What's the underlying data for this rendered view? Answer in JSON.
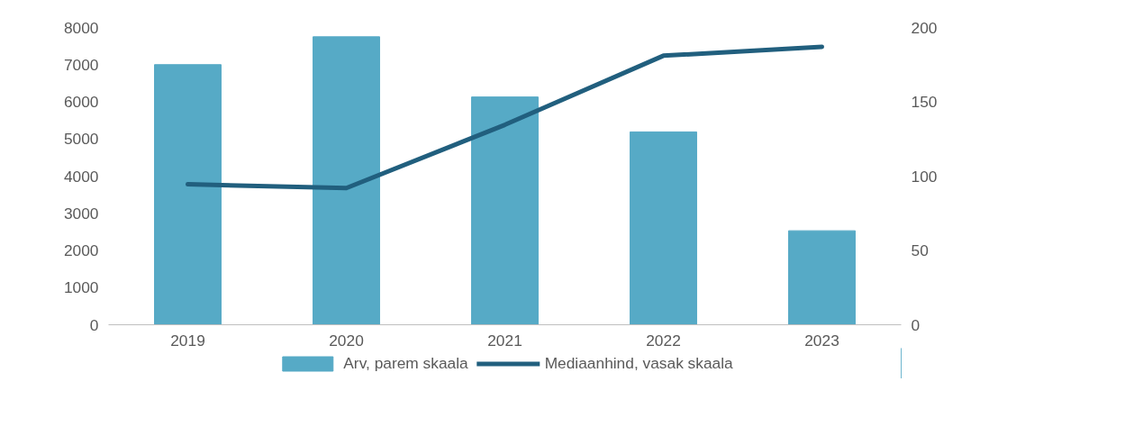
{
  "chart_data": {
    "type": "bar",
    "categories": [
      "2019",
      "2020",
      "2021",
      "2022",
      "2023"
    ],
    "series": [
      {
        "name": "Arv, parem skaala",
        "color": "#56aac6",
        "values": [
          7000,
          7750,
          6130,
          5190,
          2530
        ]
      },
      {
        "name": "Mediaanhind, vasak skaala",
        "color": "#215f7e",
        "type": "line",
        "axis": "y2",
        "values": [
          94.5,
          92,
          134.5,
          181,
          187
        ]
      }
    ],
    "ylim": [
      0,
      8000
    ],
    "yticks": [
      0,
      1000,
      2000,
      3000,
      4000,
      5000,
      6000,
      7000,
      8000
    ],
    "y2lim": [
      0,
      200
    ],
    "y2ticks": [
      0,
      50,
      100,
      150,
      200
    ],
    "grid": false,
    "legend": "bottom",
    "line_style": "solid",
    "marker": "none"
  }
}
